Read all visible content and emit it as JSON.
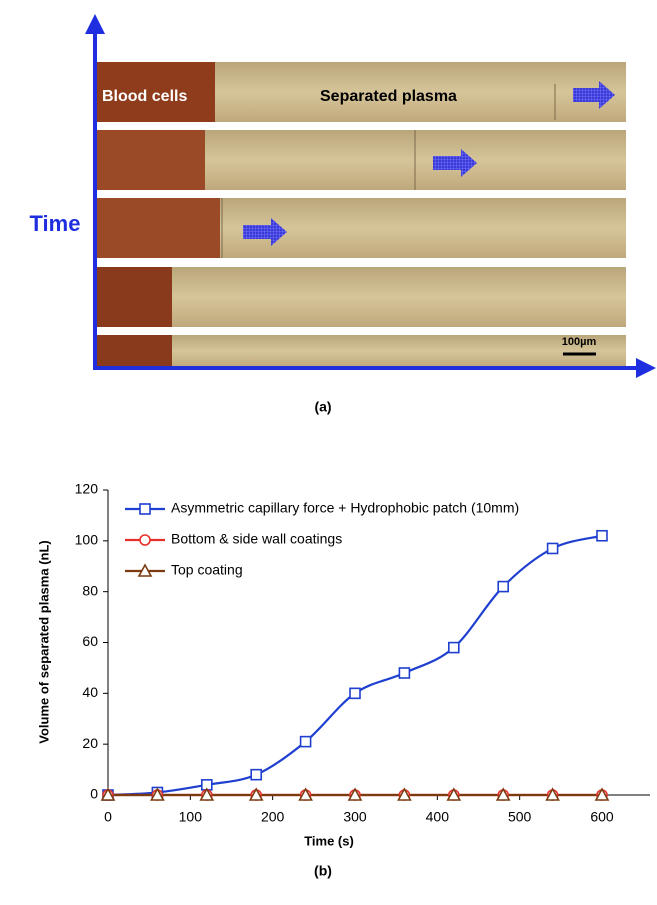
{
  "panel_a": {
    "label": "(a)",
    "axis_label": "Time",
    "blood_label": "Blood cells",
    "plasma_label": "Separated plasma",
    "scale_label": "100µm"
  },
  "chart_data": {
    "type": "line",
    "panel_label": "(b)",
    "xlabel": "Time (s)",
    "ylabel": "Volume of separated plasma (nL)",
    "x": [
      0,
      60,
      120,
      180,
      240,
      300,
      360,
      420,
      480,
      540,
      600
    ],
    "xlim": [
      0,
      600
    ],
    "xticks": [
      0,
      100,
      200,
      300,
      400,
      500,
      600
    ],
    "ylim": [
      0,
      120
    ],
    "yticks": [
      0,
      20,
      40,
      60,
      80,
      100,
      120
    ],
    "legend": "upper left",
    "smooth": true,
    "series": [
      {
        "name": "Asymmetric capillary force + Hydrophobic patch (10mm)",
        "color": "#1f3fd0",
        "marker": "square",
        "values": [
          0,
          1,
          4,
          8,
          21,
          40,
          48,
          58,
          82,
          97,
          102
        ]
      },
      {
        "name": "Bottom & side wall coatings",
        "color": "#e8302a",
        "marker": "circle",
        "values": [
          0,
          0,
          0,
          0,
          0,
          0,
          0,
          0,
          0,
          0,
          0
        ]
      },
      {
        "name": "Top coating",
        "color": "#7a3b10",
        "marker": "triangle",
        "values": [
          0,
          0,
          0,
          0,
          0,
          0,
          0,
          0,
          0,
          0,
          0
        ]
      }
    ]
  }
}
